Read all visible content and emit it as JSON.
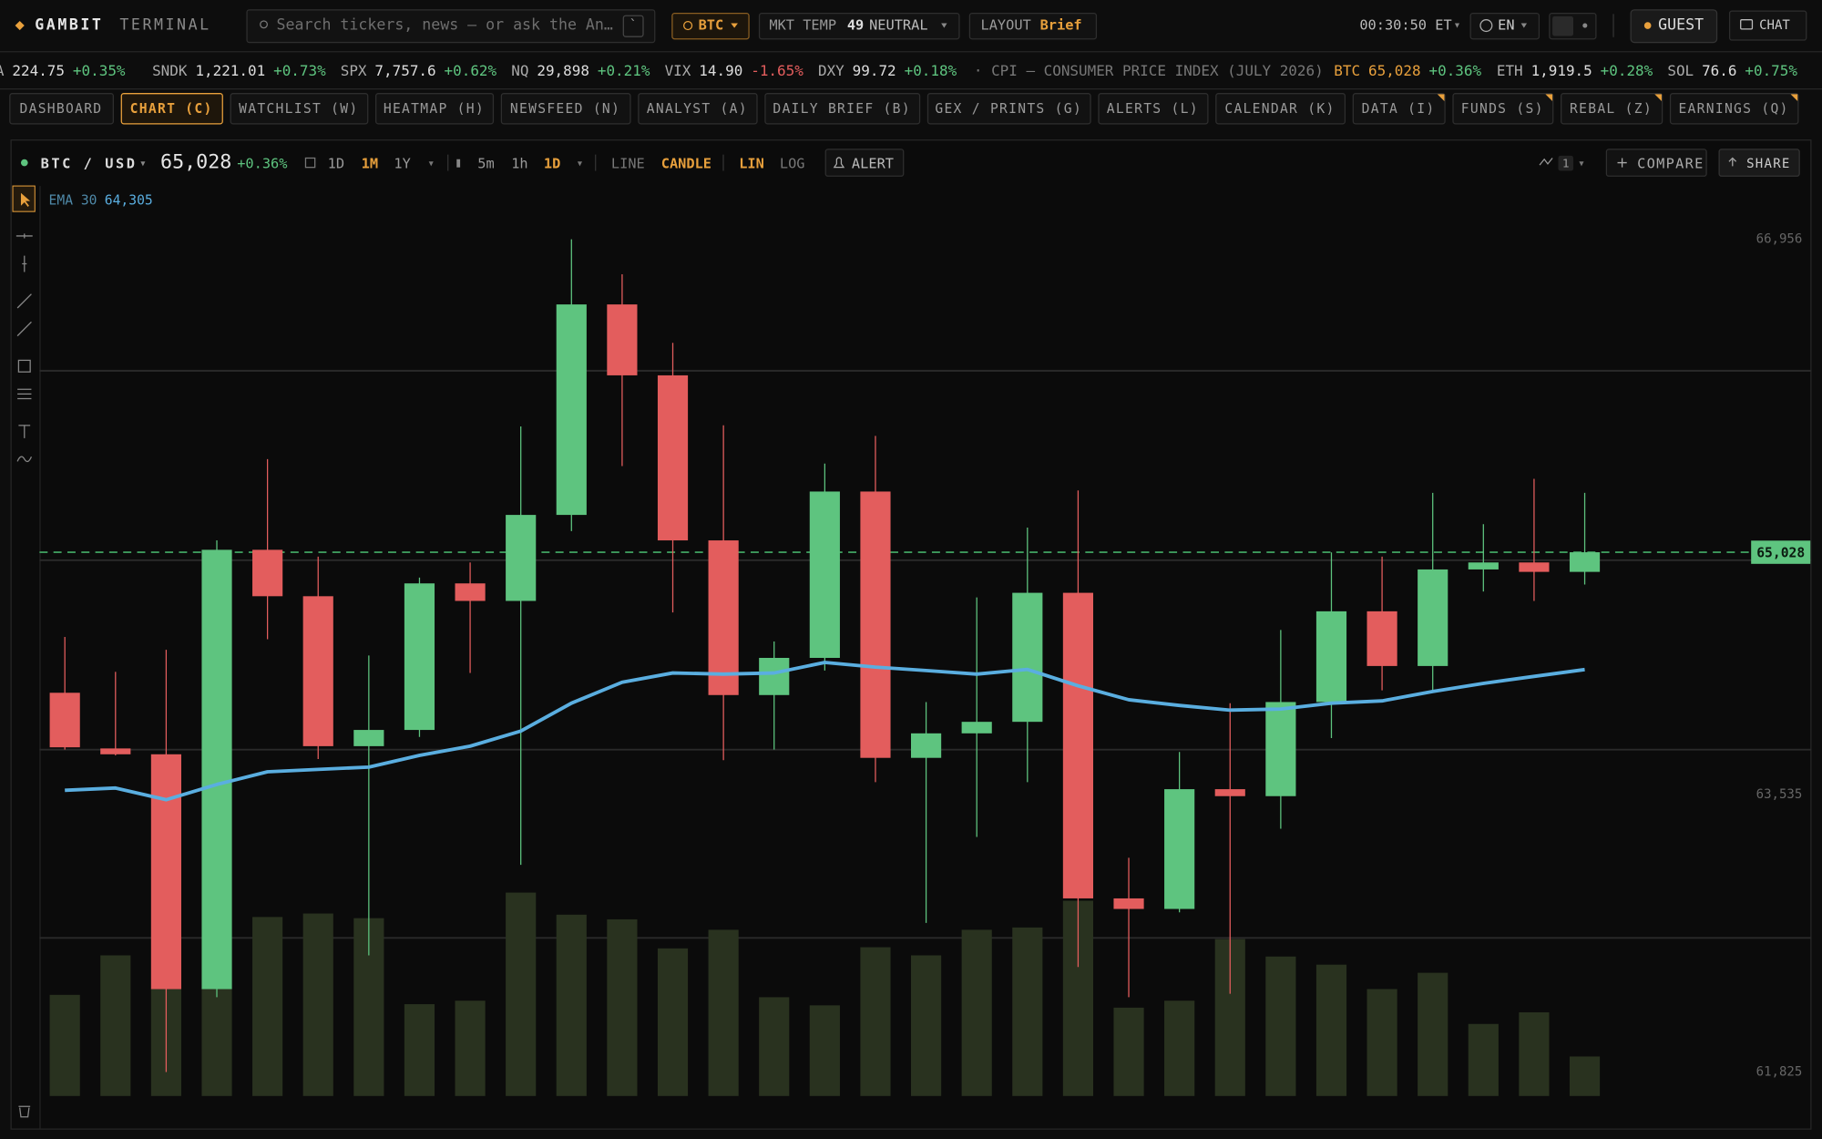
{
  "header": {
    "brand": "GAMBIT",
    "brand_sub": "TERMINAL",
    "search_placeholder": "Search tickers, news — or ask the An…",
    "search_key": "`",
    "asset": "BTC",
    "mkt_temp_label": "MKT TEMP",
    "mkt_temp_value": "49",
    "mkt_temp_state": "NEUTRAL",
    "layout_label": "LAYOUT",
    "layout_value": "Brief",
    "clock": "00:30:50 ET",
    "language": "EN",
    "user": "GUEST",
    "chat": "CHAT"
  },
  "ticker": [
    {
      "symbol": "A",
      "price": "224.75",
      "change": "+0.35%"
    },
    {
      "symbol": "SNDK",
      "price": "1,221.01",
      "change": "+0.73%"
    },
    {
      "symbol": "SPX",
      "price": "7,757.6",
      "change": "+0.62%"
    },
    {
      "symbol": "NQ",
      "price": "29,898",
      "change": "+0.21%"
    },
    {
      "symbol": "VIX",
      "price": "14.90",
      "change": "-1.65%"
    },
    {
      "symbol": "DXY",
      "price": "99.72",
      "change": "+0.18%"
    },
    {
      "news": "· CPI — CONSUMER PRICE INDEX (JULY 2026)"
    },
    {
      "symbol": "BTC",
      "price": "65,028",
      "change": "+0.36%"
    },
    {
      "symbol": "ETH",
      "price": "1,919.5",
      "change": "+0.28%"
    },
    {
      "symbol": "SOL",
      "price": "76.6",
      "change": "+0.75%"
    }
  ],
  "tabs": [
    "DASHBOARD",
    "CHART (C)",
    "WATCHLIST (W)",
    "HEATMAP (H)",
    "NEWSFEED (N)",
    "ANALYST (A)",
    "DAILY BRIEF (B)",
    "GEX / PRINTS (G)",
    "ALERTS (L)",
    "CALENDAR (K)",
    "DATA (I)",
    "FUNDS (S)",
    "REBAL (Z)",
    "EARNINGS (Q)"
  ],
  "active_tab": 1,
  "toolbar": {
    "pair": "BTC / USD",
    "change": "+0.36%",
    "ranges": [
      "1D",
      "1M",
      "1Y"
    ],
    "intervals": [
      "5m",
      "1h",
      "1D"
    ],
    "styles": [
      "LINE",
      "CANDLE"
    ],
    "scales": [
      "LIN",
      "LOG"
    ],
    "alert": "ALERT",
    "indicator_count": "1",
    "compare": "COMPARE",
    "share": "SHARE"
  },
  "chart_data": {
    "type": "candlestick",
    "categories": [
      null,
      null,
      null,
      null,
      null,
      null,
      null,
      null,
      null,
      null,
      null,
      null,
      null,
      null,
      null,
      null,
      null,
      null,
      null,
      null,
      null,
      null,
      null,
      null,
      null,
      null,
      null,
      null,
      null,
      null,
      null
    ],
    "open": [
      64162,
      63819,
      63783,
      62336,
      65043,
      64757,
      63833,
      63933,
      64836,
      64728,
      65258,
      66555,
      66118,
      65101,
      64148,
      64377,
      65402,
      63761,
      63912,
      63983,
      64778,
      62895,
      62830,
      63568,
      63525,
      64105,
      64664,
      64327,
      64922,
      64965,
      64907
    ],
    "high": [
      64506,
      64291,
      64427,
      65101,
      65602,
      65001,
      64392,
      64872,
      64965,
      65803,
      66956,
      66741,
      66318,
      65810,
      64478,
      65574,
      65745,
      64105,
      64750,
      65180,
      65409,
      63145,
      63797,
      64098,
      64549,
      65027,
      65001,
      65394,
      65201,
      65480,
      65394
    ],
    "low": [
      63812,
      63776,
      61825,
      62286,
      64492,
      63754,
      62544,
      63890,
      64284,
      63102,
      65158,
      65559,
      64657,
      63747,
      63812,
      64299,
      63611,
      62744,
      63274,
      63611,
      62472,
      62286,
      62809,
      62307,
      63324,
      63883,
      64177,
      64177,
      64786,
      64728,
      64829
    ],
    "close": [
      63826,
      63783,
      62336,
      65043,
      64757,
      63833,
      63933,
      64836,
      64728,
      65258,
      66555,
      66118,
      65101,
      64148,
      64377,
      65402,
      63761,
      63912,
      63983,
      64778,
      62895,
      62830,
      63568,
      63525,
      64105,
      64664,
      64327,
      64922,
      64965,
      64907,
      65028
    ],
    "volume": [
      87,
      121,
      93,
      93,
      154,
      157,
      153,
      79,
      82,
      175,
      156,
      152,
      127,
      143,
      85,
      78,
      128,
      121,
      143,
      145,
      168,
      76,
      82,
      135,
      120,
      113,
      92,
      106,
      62,
      72,
      34
    ],
    "volume_lim": [
      0,
      200
    ],
    "ema": {
      "name": "EMA 30",
      "color": "#5aaee0",
      "values": [
        63561,
        63575,
        63503,
        63597,
        63675,
        63690,
        63704,
        63776,
        63833,
        63926,
        64098,
        64227,
        64284,
        64277,
        64284,
        64349,
        64320,
        64299,
        64277,
        64306,
        64205,
        64119,
        64084,
        64055,
        64062,
        64098,
        64112,
        64170,
        64220,
        64263,
        64305
      ],
      "last_label": "64,305"
    },
    "last_price": {
      "value": 65028,
      "label": "65,028"
    },
    "ylim": [
      61484,
      67285
    ],
    "yticks": [
      {
        "value": 66956,
        "label": "66,956"
      },
      {
        "value": 63535,
        "label": "63,535"
      },
      {
        "value": 61825,
        "label": "61,825"
      }
    ],
    "up_color": "#5ec47f",
    "down_color": "#e35d5d",
    "volume_color": "#29321f"
  }
}
